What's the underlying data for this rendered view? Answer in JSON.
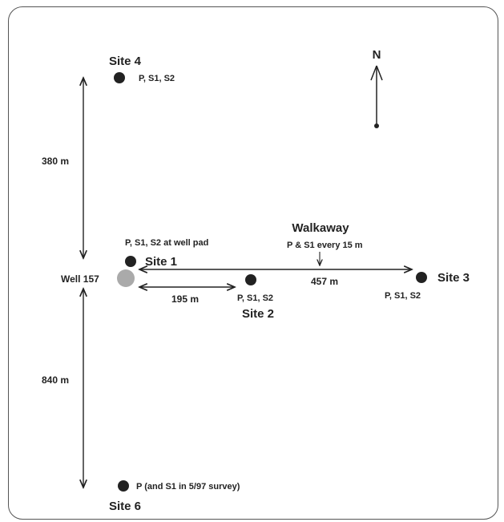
{
  "north_label": "N",
  "sites": {
    "site4": {
      "name": "Site 4",
      "note": "P, S1, S2"
    },
    "site1": {
      "name": "Site 1",
      "note": "P, S1, S2 at well pad"
    },
    "site2": {
      "name": "Site 2",
      "note": "P, S1, S2"
    },
    "site3": {
      "name": "Site 3",
      "note": "P, S1, S2"
    },
    "site6": {
      "name": "Site 6",
      "note": "P (and S1 in 5/97 survey)"
    }
  },
  "well": {
    "name": "Well 157",
    "color": "#aaaaaa"
  },
  "walkaway": {
    "title": "Walkaway",
    "note": "P & S1 every 15  m"
  },
  "distances": {
    "north": "380  m",
    "south": "840 m",
    "to_site2": "195  m",
    "to_site3": "457  m"
  },
  "colors": {
    "dot": "#222222",
    "line": "#222222"
  }
}
